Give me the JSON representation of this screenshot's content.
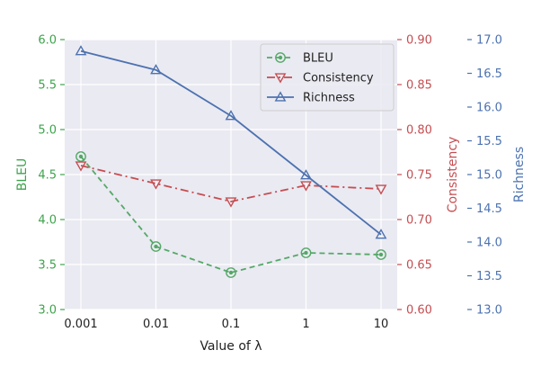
{
  "chart_data": {
    "type": "line",
    "title": "",
    "xlabel": "Value of  λ",
    "categories": [
      "0.001",
      "0.01",
      "0.1",
      "1",
      "10"
    ],
    "grid": true,
    "legend_position": "top-right",
    "axes": [
      {
        "id": "bleu",
        "side": "left",
        "label": "BLEU",
        "color": "#3fa34d",
        "range": [
          3.0,
          6.0
        ],
        "ticks": [
          "3.0",
          "3.5",
          "4.0",
          "4.5",
          "5.0",
          "5.5",
          "6.0"
        ]
      },
      {
        "id": "consistency",
        "side": "right",
        "label": "Consistency",
        "color": "#c44e52",
        "range": [
          0.6,
          0.9
        ],
        "ticks": [
          "0.60",
          "0.65",
          "0.70",
          "0.75",
          "0.80",
          "0.85",
          "0.90"
        ]
      },
      {
        "id": "richness",
        "side": "right-outer",
        "label": "Richness",
        "color": "#4c72b0",
        "range": [
          13.0,
          17.0
        ],
        "ticks": [
          "13.0",
          "13.5",
          "14.0",
          "14.5",
          "15.0",
          "15.5",
          "16.0",
          "16.5",
          "17.0"
        ]
      }
    ],
    "series": [
      {
        "name": "BLEU",
        "axis": "bleu",
        "values": [
          4.7,
          3.7,
          3.41,
          3.63,
          3.61
        ],
        "color": "#55a868",
        "line_style": "dashed",
        "marker": "circle"
      },
      {
        "name": "Consistency",
        "axis": "consistency",
        "values": [
          0.76,
          0.74,
          0.72,
          0.738,
          0.734
        ],
        "color": "#c44e52",
        "line_style": "dashdot",
        "marker": "triangle-down"
      },
      {
        "name": "Richness",
        "axis": "richness",
        "values": [
          16.83,
          16.55,
          15.87,
          14.99,
          14.11
        ],
        "color": "#4c72b0",
        "line_style": "solid",
        "marker": "triangle-up"
      }
    ]
  }
}
